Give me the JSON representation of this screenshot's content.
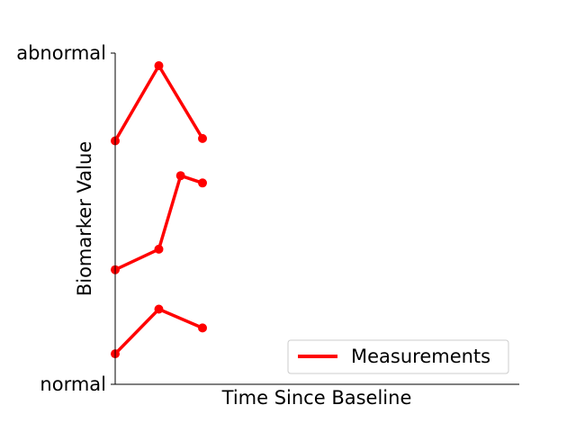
{
  "chart_data": {
    "type": "line",
    "xlabel": "Time Since Baseline",
    "ylabel": "Biomarker Value",
    "xlim": [
      0,
      1
    ],
    "ylim": [
      0,
      1
    ],
    "yticks": [
      {
        "value": 0,
        "label": "normal"
      },
      {
        "value": 1,
        "label": "abnormal"
      }
    ],
    "grid": false,
    "legend": {
      "placement": "bottom-right",
      "entries": [
        "Measurements"
      ]
    },
    "color": "#ff0000",
    "series": [
      {
        "x": [
          0.0,
          0.108,
          0.216
        ],
        "y": [
          0.735,
          0.962,
          0.742
        ]
      },
      {
        "x": [
          0.0,
          0.108,
          0.162,
          0.216
        ],
        "y": [
          0.346,
          0.408,
          0.63,
          0.608
        ]
      },
      {
        "x": [
          0.0,
          0.108,
          0.216
        ],
        "y": [
          0.092,
          0.227,
          0.17
        ]
      }
    ]
  }
}
